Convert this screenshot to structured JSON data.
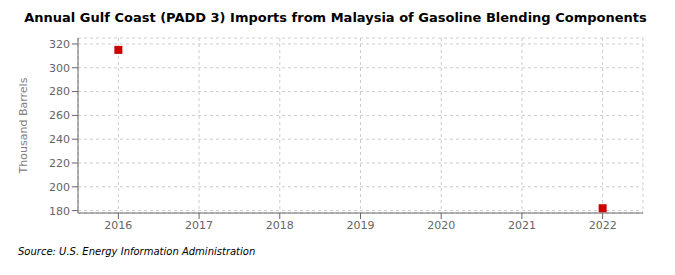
{
  "chart_data": {
    "type": "scatter",
    "title": "Annual Gulf Coast (PADD 3) Imports from Malaysia of Gasoline Blending Components",
    "ylabel": "Thousand Barrels",
    "source": "Source: U.S. Energy Information Administration",
    "x": [
      2016,
      2022
    ],
    "values": [
      315,
      182
    ],
    "xlim": [
      2015.5,
      2022.5
    ],
    "ylim": [
      178,
      325
    ],
    "xticks": [
      2016,
      2017,
      2018,
      2019,
      2020,
      2021,
      2022
    ],
    "yticks": [
      180,
      200,
      220,
      240,
      260,
      280,
      300,
      320
    ],
    "color": "#cc0000",
    "marker": "square",
    "grid": true
  }
}
